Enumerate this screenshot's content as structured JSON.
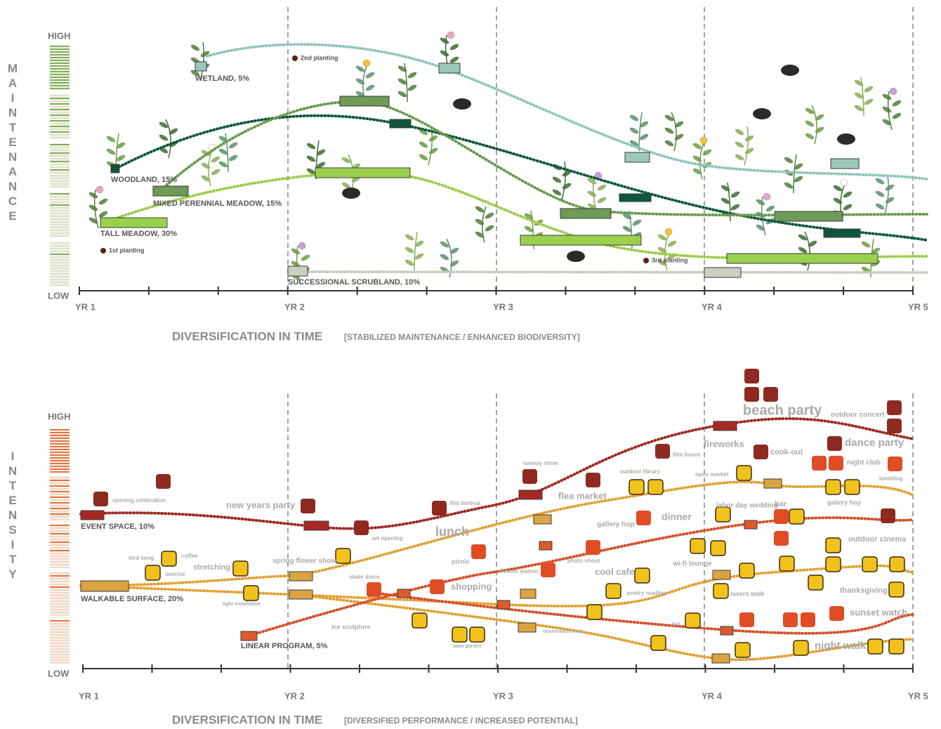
{
  "maintenance_panel": {
    "axis_label": "MAINTENANCE",
    "high": "HIGH",
    "low": "LOW",
    "x_labels": [
      "YR 1",
      "YR 2",
      "YR 3",
      "YR 4",
      "YR 5"
    ],
    "title": "DIVERSIFICATION IN TIME",
    "subtitle": "[STABILIZED MAINTENANCE / ENHANCED BIODIVERSITY]",
    "layers": [
      "WETLAND, 5%",
      "WOODLAND, 15%",
      "MIXED PERENNIAL MEADOW, 15%",
      "TALL MEADOW, 30%",
      "SUCCESSIONAL SCRUBLAND, 10%"
    ],
    "plantings": [
      "1st planting",
      "2nd planting",
      "3rd planting"
    ]
  },
  "intensity_panel": {
    "axis_label": "INTENSITY",
    "high": "HIGH",
    "low": "LOW",
    "x_labels": [
      "YR 1",
      "YR 2",
      "YR 3",
      "YR 4",
      "YR 5"
    ],
    "title": "DIVERSIFICATION IN TIME",
    "subtitle": "[DIVERSIFIED PERFORMANCE / INCREASED POTENTIAL]",
    "layers": [
      "EVENT SPACE, 10%",
      "WALKABLE SURFACE, 20%",
      "LINEAR PROGRAM, 5%"
    ],
    "activities": [
      "opening celebration",
      "new years party",
      "art opening",
      "lunch",
      "film festival",
      "runway show",
      "flea market",
      "fireworks",
      "beach party",
      "outdoor concert",
      "cook-out",
      "dance party",
      "night club",
      "outdoor library",
      "film forum",
      "open market",
      "tumbling",
      "bird song",
      "coffee",
      "sunrise",
      "stretching",
      "spring flower show",
      "light installation",
      "skate disco",
      "picnic",
      "shopping",
      "ice sculpture",
      "lawn garden",
      "fitness station",
      "photo shoot",
      "cool cafe",
      "poetry reading",
      "observation deck",
      "gallery hop",
      "dinner",
      "labor day wedding",
      "bar",
      "gallery hop",
      "outdoor cinema",
      "wi-fi lounge",
      "lovers walk",
      "thanksgiving",
      "sunset watch",
      "night walk",
      "bar"
    ]
  }
}
